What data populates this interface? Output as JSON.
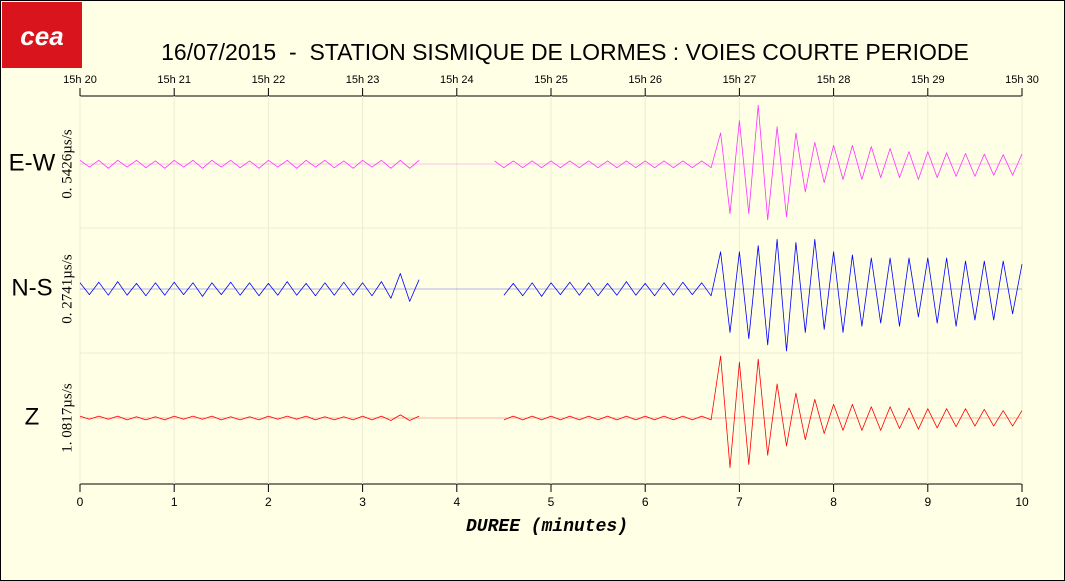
{
  "logo": "cea",
  "chart_data": {
    "type": "seismogram",
    "title": "16/07/2015  -  STATION SISMIQUE DE LORMES : VOIES COURTE PERIODE",
    "xlabel": "DUREE (minutes)",
    "xlim": [
      0,
      10
    ],
    "xticks": [
      0,
      1,
      2,
      3,
      4,
      5,
      6,
      7,
      8,
      9,
      10
    ],
    "x2ticks": [
      {
        "value": 0,
        "label": "15h 20"
      },
      {
        "value": 1,
        "label": "15h 21"
      },
      {
        "value": 2,
        "label": "15h 22"
      },
      {
        "value": 3,
        "label": "15h 23"
      },
      {
        "value": 4,
        "label": "15h 24"
      },
      {
        "value": 5,
        "label": "15h 25"
      },
      {
        "value": 6,
        "label": "15h 26"
      },
      {
        "value": 7,
        "label": "15h 27"
      },
      {
        "value": 8,
        "label": "15h 28"
      },
      {
        "value": 9,
        "label": "15h 29"
      },
      {
        "value": 10,
        "label": "15h 30"
      }
    ],
    "ylim": [
      -1,
      1
    ],
    "grid": true,
    "x": [
      0,
      0.1,
      0.2,
      0.3,
      0.4,
      0.5,
      0.6,
      0.7,
      0.8,
      0.9,
      1,
      1.1,
      1.2,
      1.3,
      1.4,
      1.5,
      1.6,
      1.7,
      1.8,
      1.9,
      2,
      2.1,
      2.2,
      2.3,
      2.4,
      2.5,
      2.6,
      2.7,
      2.8,
      2.9,
      3,
      3.1,
      3.2,
      3.3,
      3.4,
      3.5,
      3.6,
      3.7,
      3.8,
      3.9,
      4,
      4.1,
      4.2,
      4.3,
      4.4,
      4.5,
      4.6,
      4.7,
      4.8,
      4.9,
      5,
      5.1,
      5.2,
      5.3,
      5.4,
      5.5,
      5.6,
      5.7,
      5.8,
      5.9,
      6,
      6.1,
      6.2,
      6.3,
      6.4,
      6.5,
      6.6,
      6.7,
      6.8,
      6.9,
      7,
      7.1,
      7.2,
      7.3,
      7.4,
      7.5,
      7.6,
      7.7,
      7.8,
      7.9,
      8,
      8.1,
      8.2,
      8.3,
      8.4,
      8.5,
      8.6,
      8.7,
      8.8,
      8.9,
      9,
      9.1,
      9.2,
      9.3,
      9.4,
      9.5,
      9.6,
      9.7,
      9.8,
      9.9,
      10
    ],
    "series": [
      {
        "name": "E-W",
        "scale_label": "0. 5426µs/s",
        "color": "#ff33ff",
        "values": [
          0.06,
          0.05,
          0.06,
          0.07,
          0.06,
          0.05,
          0.06,
          0.06,
          0.05,
          0.07,
          0.06,
          0.05,
          0.06,
          0.07,
          0.06,
          0.05,
          0.06,
          0.06,
          0.05,
          0.07,
          0.06,
          0.05,
          0.06,
          0.07,
          0.06,
          0.05,
          0.06,
          0.06,
          0.05,
          0.07,
          0.06,
          0.05,
          0.06,
          0.07,
          0.06,
          0.07,
          0.06,
          null,
          null,
          null,
          null,
          null,
          null,
          null,
          0.05,
          0.06,
          0.05,
          0.06,
          0.05,
          0.06,
          0.05,
          0.06,
          0.05,
          0.06,
          0.05,
          0.06,
          0.05,
          0.06,
          0.05,
          0.06,
          0.05,
          0.06,
          0.05,
          0.06,
          0.05,
          0.06,
          0.05,
          0.06,
          0.5,
          0.8,
          0.7,
          0.8,
          0.95,
          0.9,
          0.6,
          0.85,
          0.5,
          0.45,
          0.35,
          0.3,
          0.3,
          0.25,
          0.3,
          0.25,
          0.28,
          0.22,
          0.25,
          0.22,
          0.2,
          0.25,
          0.2,
          0.22,
          0.18,
          0.2,
          0.17,
          0.2,
          0.16,
          0.18,
          0.15,
          0.18,
          0.16
        ]
      },
      {
        "name": "N-S",
        "scale_label": "0. 2741µs/s",
        "color": "#0000ff",
        "values": [
          0.1,
          0.09,
          0.11,
          0.1,
          0.12,
          0.1,
          0.09,
          0.11,
          0.1,
          0.1,
          0.11,
          0.09,
          0.1,
          0.12,
          0.1,
          0.09,
          0.11,
          0.1,
          0.1,
          0.11,
          0.09,
          0.1,
          0.12,
          0.1,
          0.09,
          0.11,
          0.1,
          0.1,
          0.11,
          0.1,
          0.1,
          0.11,
          0.12,
          0.15,
          0.25,
          0.2,
          0.15,
          null,
          null,
          null,
          null,
          null,
          null,
          null,
          null,
          0.1,
          0.09,
          0.11,
          0.1,
          0.12,
          0.1,
          0.09,
          0.11,
          0.1,
          0.1,
          0.11,
          0.09,
          0.1,
          0.12,
          0.1,
          0.09,
          0.11,
          0.1,
          0.1,
          0.11,
          0.09,
          0.1,
          0.11,
          0.6,
          0.7,
          0.6,
          0.8,
          0.7,
          0.9,
          0.8,
          1.0,
          0.75,
          0.7,
          0.8,
          0.65,
          0.6,
          0.7,
          0.55,
          0.6,
          0.5,
          0.55,
          0.5,
          0.6,
          0.5,
          0.45,
          0.5,
          0.55,
          0.5,
          0.6,
          0.45,
          0.5,
          0.45,
          0.5,
          0.45,
          0.4,
          0.4
        ]
      },
      {
        "name": "Z",
        "scale_label": "1. 0817µs/s",
        "color": "#ff0000",
        "values": [
          0.03,
          0.02,
          0.03,
          0.02,
          0.03,
          0.03,
          0.02,
          0.03,
          0.02,
          0.03,
          0.03,
          0.02,
          0.03,
          0.02,
          0.03,
          0.03,
          0.02,
          0.03,
          0.02,
          0.03,
          0.03,
          0.02,
          0.03,
          0.02,
          0.03,
          0.03,
          0.02,
          0.03,
          0.02,
          0.03,
          0.03,
          0.03,
          0.03,
          0.04,
          0.05,
          0.04,
          0.03,
          null,
          null,
          null,
          null,
          null,
          null,
          null,
          null,
          0.03,
          0.03,
          0.03,
          0.03,
          0.03,
          0.03,
          0.03,
          0.03,
          0.03,
          0.03,
          0.03,
          0.03,
          0.03,
          0.03,
          0.03,
          0.03,
          0.03,
          0.03,
          0.03,
          0.03,
          0.03,
          0.03,
          0.03,
          1.0,
          0.8,
          0.9,
          0.75,
          0.95,
          0.6,
          0.55,
          0.45,
          0.4,
          0.35,
          0.3,
          0.25,
          0.22,
          0.2,
          0.22,
          0.2,
          0.18,
          0.2,
          0.18,
          0.17,
          0.16,
          0.18,
          0.15,
          0.16,
          0.15,
          0.14,
          0.15,
          0.13,
          0.14,
          0.13,
          0.12,
          0.13,
          0.12
        ]
      }
    ]
  }
}
